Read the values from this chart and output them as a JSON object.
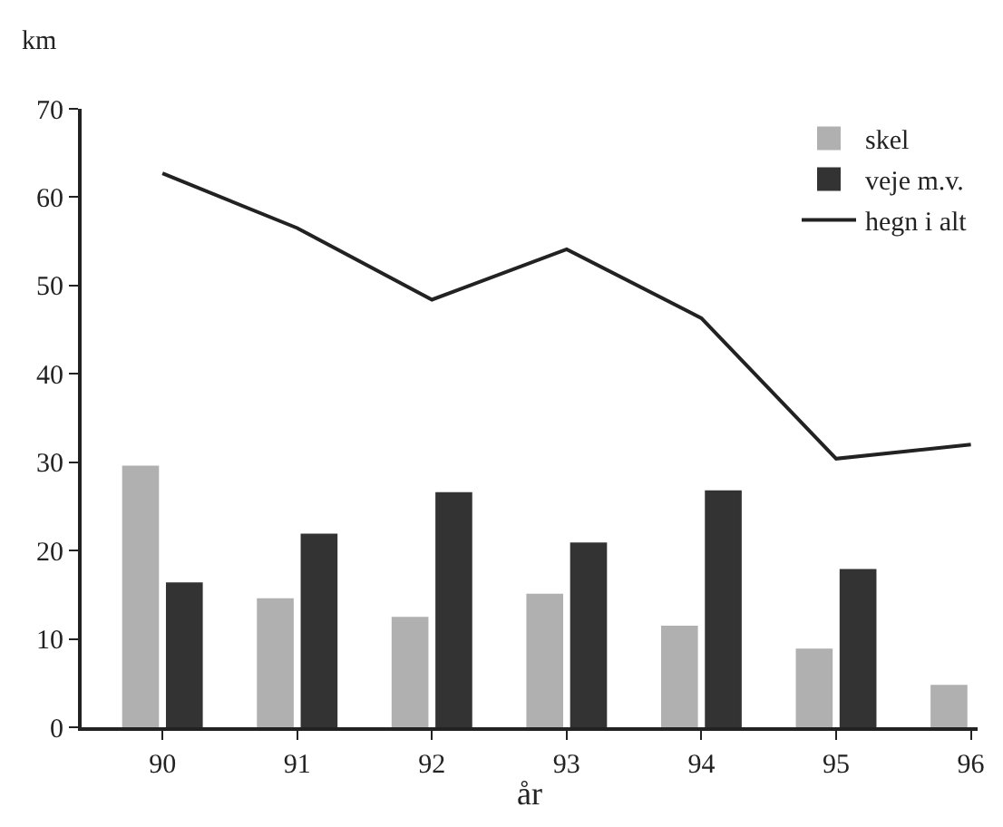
{
  "chart_data": {
    "type": "bar",
    "ylabel": "km",
    "xlabel": "år",
    "categories": [
      "90",
      "91",
      "92",
      "93",
      "94",
      "95",
      "96"
    ],
    "series": [
      {
        "name": "skel",
        "color": "#b0b0b0",
        "values": [
          29.5,
          14.5,
          12.4,
          15,
          11.4,
          8.8,
          4.7
        ]
      },
      {
        "name": "veje m.v.",
        "color": "#333333",
        "values": [
          16.3,
          21.8,
          26.5,
          20.8,
          26.7,
          17.8,
          null
        ]
      },
      {
        "name": "hegn i alt",
        "type": "line",
        "color": "#222222",
        "values": [
          62.7,
          56.5,
          48.4,
          54.1,
          46.3,
          30.4,
          32
        ]
      }
    ],
    "ylim": [
      0,
      70
    ],
    "yticks": [
      0,
      10,
      20,
      30,
      40,
      50,
      60,
      70
    ],
    "legend": "top right",
    "marker": "none",
    "line_style": "solid"
  }
}
